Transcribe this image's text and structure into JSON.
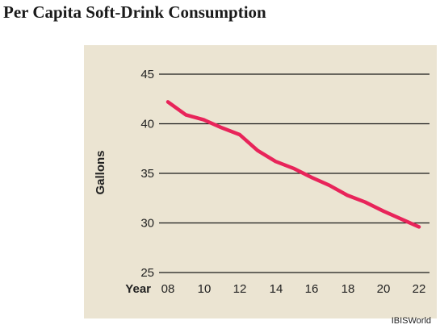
{
  "title": "Per Capita Soft-Drink Consumption",
  "source": "IBISWorld",
  "colors": {
    "background_panel": "#ebe4d2",
    "gridline": "#1a1a1a",
    "line": "#e8245a"
  },
  "chart_data": {
    "type": "line",
    "title": "Per Capita Soft-Drink Consumption",
    "xlabel": "Year",
    "ylabel": "Gallons",
    "x_ticks": [
      "08",
      "10",
      "12",
      "14",
      "16",
      "18",
      "20",
      "22"
    ],
    "y_ticks": [
      "25",
      "30",
      "35",
      "40",
      "45"
    ],
    "xlim": [
      2008,
      2022
    ],
    "ylim": [
      25,
      45
    ],
    "grid": true,
    "series": [
      {
        "x": [
          2008,
          2009,
          2010,
          2011,
          2012,
          2013,
          2014,
          2015,
          2016,
          2017,
          2018,
          2019,
          2020,
          2021,
          2022
        ],
        "values": [
          42.2,
          40.9,
          40.4,
          39.6,
          38.9,
          37.3,
          36.2,
          35.5,
          34.6,
          33.8,
          32.8,
          32.1,
          31.2,
          30.4,
          29.6
        ]
      }
    ]
  }
}
